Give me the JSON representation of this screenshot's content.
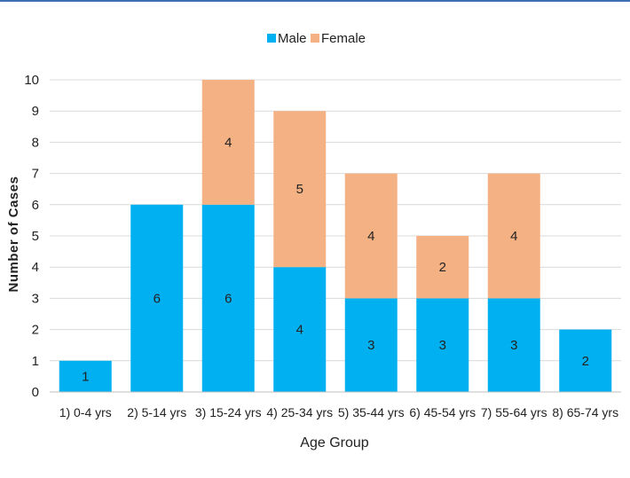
{
  "chart_data": {
    "type": "bar",
    "stacked": true,
    "title": "",
    "xlabel": "Age Group",
    "ylabel": "Number of Cases",
    "ylim": [
      0,
      10
    ],
    "yticks": [
      "0",
      "1",
      "2",
      "3",
      "4",
      "5",
      "6",
      "7",
      "8",
      "9",
      "10"
    ],
    "grid": "horizontal",
    "legend_position": "top",
    "categories": [
      "1) 0-4 yrs",
      "2) 5-14 yrs",
      "3) 15-24 yrs",
      "4) 25-34 yrs",
      "5) 35-44 yrs",
      "6) 45-54 yrs",
      "7) 55-64 yrs",
      "8) 65-74 yrs"
    ],
    "series": [
      {
        "name": "Male",
        "color": "#00b0f0",
        "values": [
          1,
          6,
          6,
          4,
          3,
          3,
          3,
          2
        ],
        "labels": [
          "1",
          "6",
          "6",
          "4",
          "3",
          "3",
          "3",
          "2"
        ]
      },
      {
        "name": "Female",
        "color": "#f4b183",
        "values": [
          0,
          0,
          4,
          5,
          4,
          2,
          4,
          0
        ],
        "labels": [
          "",
          "",
          "4",
          "5",
          "4",
          "2",
          "4",
          ""
        ]
      }
    ]
  }
}
